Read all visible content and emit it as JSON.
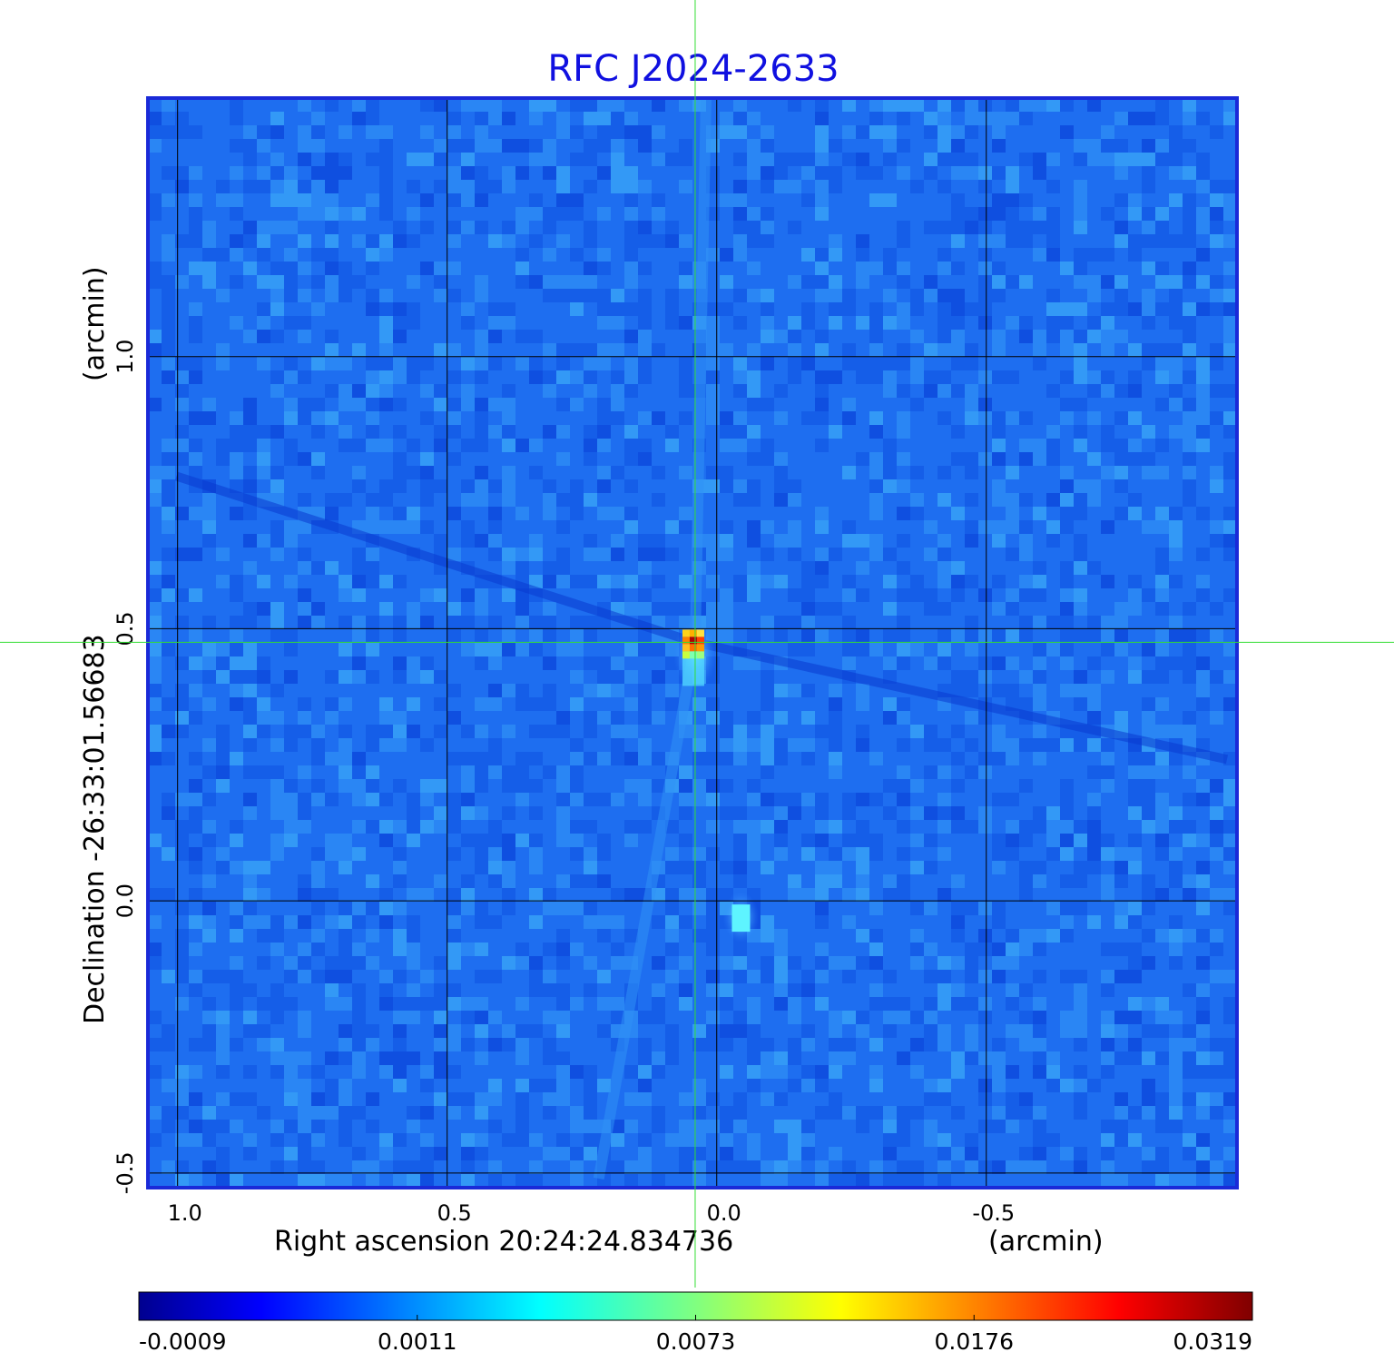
{
  "chart_data": {
    "type": "heatmap",
    "title": "RFC J2024-2633",
    "xlabel": "Right ascension  20:24:24.834736",
    "xunit": "(arcmin)",
    "ylabel": "Declination  -26:33:01.56683",
    "yunit": "(arcmin)",
    "x_ticks": [
      {
        "value": 1.0,
        "label": "1.0"
      },
      {
        "value": 0.5,
        "label": "0.5"
      },
      {
        "value": 0.0,
        "label": "0.0"
      },
      {
        "value": -0.5,
        "label": "-0.5"
      }
    ],
    "y_ticks": [
      {
        "value": 1.0,
        "label": "1.0"
      },
      {
        "value": 0.5,
        "label": "0.5"
      },
      {
        "value": 0.0,
        "label": "0.0"
      },
      {
        "value": -0.5,
        "label": "-0.5"
      }
    ],
    "xlim": [
      1.055,
      -0.965
    ],
    "ylim": [
      -0.527,
      1.475
    ],
    "x_reversed": true,
    "grid": true,
    "crosshair": {
      "x": 0.04,
      "y": 0.475,
      "color": "#33dd33"
    },
    "sources": [
      {
        "x": 0.04,
        "y": 0.475,
        "peak": 0.0319
      },
      {
        "x": -0.045,
        "y": -0.03,
        "peak": 0.0043
      }
    ],
    "colorbar": {
      "placement": "bottom",
      "colormap": "jet",
      "ticks": [
        "-0.0009",
        "0.0011",
        "0.0073",
        "0.0176",
        "0.0319"
      ],
      "vmin": -0.0009,
      "vmax": 0.0319
    },
    "colors": {
      "title": "#1010e0",
      "frame": "#1a2ad8",
      "grid": "#000000",
      "crosshair": "#33dd33"
    }
  }
}
